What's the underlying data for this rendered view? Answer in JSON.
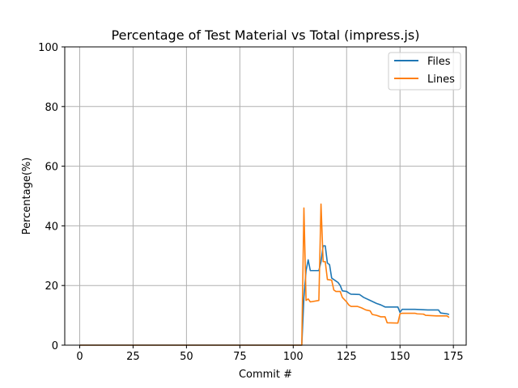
{
  "chart_data": {
    "type": "line",
    "title": "Percentage of Test Material vs Total (impress.js)",
    "xlabel": "Commit #",
    "ylabel": "Percentage(%)",
    "xlim": [
      -7,
      181
    ],
    "ylim": [
      0,
      100
    ],
    "xticks": [
      0,
      25,
      50,
      75,
      100,
      125,
      150,
      175
    ],
    "yticks": [
      0,
      20,
      40,
      60,
      80,
      100
    ],
    "grid": true,
    "legend_position": "top-right",
    "series": [
      {
        "name": "Files",
        "color": "#1f77b4",
        "points": [
          [
            0,
            0
          ],
          [
            104,
            0
          ],
          [
            105,
            16
          ],
          [
            106,
            25
          ],
          [
            107,
            28.6
          ],
          [
            108,
            25
          ],
          [
            112,
            25
          ],
          [
            113,
            28
          ],
          [
            114,
            33.3
          ],
          [
            115,
            33.3
          ],
          [
            116,
            27.5
          ],
          [
            117,
            27
          ],
          [
            118,
            22.5
          ],
          [
            120,
            21.5
          ],
          [
            121,
            21
          ],
          [
            122,
            20
          ],
          [
            123,
            18.2
          ],
          [
            125,
            18
          ],
          [
            126,
            17.5
          ],
          [
            127,
            17.1
          ],
          [
            131,
            17
          ],
          [
            133,
            16
          ],
          [
            136,
            15
          ],
          [
            139,
            14
          ],
          [
            141,
            13.5
          ],
          [
            143,
            12.8
          ],
          [
            149,
            12.8
          ],
          [
            150,
            11
          ],
          [
            151,
            12
          ],
          [
            157,
            12
          ],
          [
            163,
            11.8
          ],
          [
            166,
            11.8
          ],
          [
            168,
            11.8
          ],
          [
            169,
            10.8
          ],
          [
            172,
            10.5
          ],
          [
            173,
            10.3
          ]
        ]
      },
      {
        "name": "Lines",
        "color": "#ff7f0e",
        "points": [
          [
            0,
            0
          ],
          [
            104,
            0
          ],
          [
            105,
            46
          ],
          [
            106,
            15
          ],
          [
            107,
            15.5
          ],
          [
            108,
            14.5
          ],
          [
            112,
            15
          ],
          [
            113,
            47.3
          ],
          [
            114,
            28
          ],
          [
            115,
            28
          ],
          [
            116,
            22
          ],
          [
            118,
            21.8
          ],
          [
            119,
            18.5
          ],
          [
            120,
            18
          ],
          [
            122,
            18
          ],
          [
            123,
            16
          ],
          [
            125,
            14.5
          ],
          [
            126,
            13.5
          ],
          [
            127,
            13
          ],
          [
            130,
            13
          ],
          [
            132,
            12.5
          ],
          [
            134,
            11.8
          ],
          [
            136,
            11.5
          ],
          [
            137,
            10.3
          ],
          [
            139,
            10
          ],
          [
            141,
            9.5
          ],
          [
            143,
            9.5
          ],
          [
            144,
            7.5
          ],
          [
            149,
            7.4
          ],
          [
            150,
            10.5
          ],
          [
            151,
            10.7
          ],
          [
            157,
            10.7
          ],
          [
            158,
            10.5
          ],
          [
            161,
            10.4
          ],
          [
            162,
            10
          ],
          [
            167,
            9.8
          ],
          [
            168,
            9.8
          ],
          [
            172,
            9.8
          ],
          [
            173,
            9.3
          ]
        ]
      }
    ]
  }
}
